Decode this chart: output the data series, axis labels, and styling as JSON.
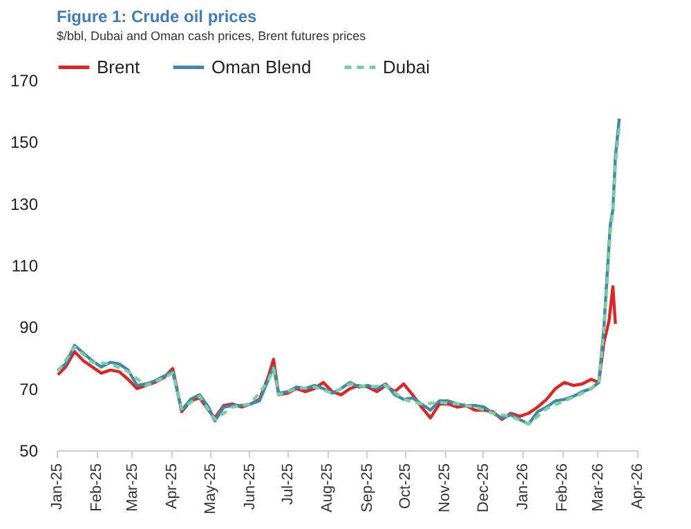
{
  "chart_data": {
    "type": "line",
    "title": "Figure 1: Crude oil prices",
    "subtitle": "$/bbl, Dubai and Oman cash prices, Brent futures prices",
    "legend": "top",
    "grid": false,
    "marker": "none",
    "line_style": "solid",
    "ylim": [
      50,
      170
    ],
    "yticks": [
      50,
      70,
      90,
      110,
      130,
      150,
      170
    ],
    "xlim": [
      "2025-01-01",
      "2026-04-01"
    ],
    "xticks": [
      {
        "value": "2025-01-01",
        "label": "Jan-25"
      },
      {
        "value": "2025-02-01",
        "label": "Feb-25"
      },
      {
        "value": "2025-03-01",
        "label": "Mar-25"
      },
      {
        "value": "2025-04-01",
        "label": "Apr-25"
      },
      {
        "value": "2025-05-01",
        "label": "May-25"
      },
      {
        "value": "2025-06-01",
        "label": "Jun-25"
      },
      {
        "value": "2025-07-01",
        "label": "Jul-25"
      },
      {
        "value": "2025-08-01",
        "label": "Aug-25"
      },
      {
        "value": "2025-09-01",
        "label": "Sep-25"
      },
      {
        "value": "2025-10-01",
        "label": "Oct-25"
      },
      {
        "value": "2025-11-01",
        "label": "Nov-25"
      },
      {
        "value": "2025-12-01",
        "label": "Dec-25"
      },
      {
        "value": "2026-01-01",
        "label": "Jan-26"
      },
      {
        "value": "2026-02-01",
        "label": "Feb-26"
      },
      {
        "value": "2026-03-01",
        "label": "Mar-26"
      },
      {
        "value": "2026-04-01",
        "label": "Apr-26"
      }
    ],
    "series": [
      {
        "name": "Brent",
        "color": "#e02424",
        "x": [
          "2025-01-02",
          "2025-01-08",
          "2025-01-15",
          "2025-01-22",
          "2025-01-29",
          "2025-02-05",
          "2025-02-12",
          "2025-02-19",
          "2025-02-26",
          "2025-03-05",
          "2025-03-12",
          "2025-03-19",
          "2025-03-26",
          "2025-04-02",
          "2025-04-09",
          "2025-04-16",
          "2025-04-23",
          "2025-04-30",
          "2025-05-05",
          "2025-05-12",
          "2025-05-19",
          "2025-05-26",
          "2025-06-02",
          "2025-06-09",
          "2025-06-16",
          "2025-06-20",
          "2025-06-24",
          "2025-07-01",
          "2025-07-08",
          "2025-07-15",
          "2025-07-22",
          "2025-07-29",
          "2025-08-05",
          "2025-08-12",
          "2025-08-19",
          "2025-08-26",
          "2025-09-02",
          "2025-09-09",
          "2025-09-16",
          "2025-09-23",
          "2025-09-30",
          "2025-10-07",
          "2025-10-14",
          "2025-10-21",
          "2025-10-28",
          "2025-11-04",
          "2025-11-11",
          "2025-11-18",
          "2025-11-25",
          "2025-12-02",
          "2025-12-09",
          "2025-12-16",
          "2025-12-23",
          "2025-12-30",
          "2026-01-06",
          "2026-01-13",
          "2026-01-20",
          "2026-01-27",
          "2026-02-03",
          "2026-02-10",
          "2026-02-17",
          "2026-02-24",
          "2026-03-02",
          "2026-03-06",
          "2026-03-10",
          "2026-03-13",
          "2026-03-15"
        ],
        "values": [
          74.5,
          77,
          82,
          79,
          77,
          75,
          76,
          75.5,
          73,
          70,
          71,
          72,
          73.5,
          76.5,
          62.5,
          66,
          67,
          63,
          60.5,
          64.5,
          65,
          64,
          65,
          66.5,
          74,
          79.5,
          68,
          68.5,
          70,
          69,
          70,
          72,
          69,
          68,
          70,
          71,
          70.5,
          69,
          71,
          69,
          71.5,
          68,
          64,
          60.5,
          65,
          65,
          64,
          64.5,
          63,
          63,
          62.5,
          60,
          62,
          61,
          62,
          64,
          66.5,
          70,
          72,
          71,
          71.5,
          73,
          72,
          85,
          92,
          103,
          91
        ]
      },
      {
        "name": "Oman Blend",
        "color": "#3f8aa8",
        "x": [
          "2025-01-02",
          "2025-01-08",
          "2025-01-15",
          "2025-01-22",
          "2025-01-29",
          "2025-02-05",
          "2025-02-12",
          "2025-02-19",
          "2025-02-26",
          "2025-03-05",
          "2025-03-12",
          "2025-03-19",
          "2025-03-26",
          "2025-04-02",
          "2025-04-09",
          "2025-04-16",
          "2025-04-23",
          "2025-04-30",
          "2025-05-05",
          "2025-05-12",
          "2025-05-19",
          "2025-05-26",
          "2025-06-02",
          "2025-06-09",
          "2025-06-16",
          "2025-06-20",
          "2025-06-24",
          "2025-07-01",
          "2025-07-08",
          "2025-07-15",
          "2025-07-22",
          "2025-07-29",
          "2025-08-05",
          "2025-08-12",
          "2025-08-19",
          "2025-08-26",
          "2025-09-02",
          "2025-09-09",
          "2025-09-16",
          "2025-09-23",
          "2025-09-30",
          "2025-10-07",
          "2025-10-14",
          "2025-10-21",
          "2025-10-28",
          "2025-11-04",
          "2025-11-11",
          "2025-11-18",
          "2025-11-25",
          "2025-12-02",
          "2025-12-09",
          "2025-12-16",
          "2025-12-23",
          "2025-12-30",
          "2026-01-06",
          "2026-01-13",
          "2026-01-20",
          "2026-01-27",
          "2026-02-03",
          "2026-02-10",
          "2026-02-17",
          "2026-02-24",
          "2026-03-02",
          "2026-03-06",
          "2026-03-09",
          "2026-03-11",
          "2026-03-13",
          "2026-03-15",
          "2026-03-18"
        ],
        "values": [
          76,
          78,
          84,
          81.5,
          79,
          77,
          78.5,
          78,
          76,
          71,
          71.5,
          72.5,
          74,
          75.5,
          63,
          66.5,
          68,
          64,
          59.5,
          64,
          64.5,
          64.5,
          65,
          66,
          73,
          77,
          68.5,
          69,
          70.5,
          70,
          71,
          70,
          68.5,
          70,
          72,
          70.5,
          71,
          70,
          71.5,
          68,
          66.5,
          67,
          65,
          63,
          66,
          66,
          65,
          64.5,
          64.5,
          64,
          62,
          60.5,
          61.5,
          60,
          58.5,
          62.5,
          64,
          66,
          66.5,
          67.5,
          69,
          70,
          72,
          90,
          110,
          123,
          128,
          145,
          157.5
        ]
      },
      {
        "name": "Dubai",
        "color": "#7ccfa4",
        "line_style": "dashed",
        "x": [
          "2025-01-02",
          "2025-01-15",
          "2025-01-29",
          "2025-02-12",
          "2025-02-26",
          "2025-03-12",
          "2025-03-26",
          "2025-04-02",
          "2025-04-09",
          "2025-04-23",
          "2025-05-05",
          "2025-05-19",
          "2025-06-02",
          "2025-06-16",
          "2025-06-20",
          "2025-06-24",
          "2025-07-08",
          "2025-07-22",
          "2025-08-05",
          "2025-08-19",
          "2025-09-02",
          "2025-09-16",
          "2025-09-30",
          "2025-10-14",
          "2025-10-28",
          "2025-11-11",
          "2025-11-25",
          "2025-12-09",
          "2025-12-23",
          "2026-01-06",
          "2026-01-20",
          "2026-02-03",
          "2026-02-17",
          "2026-03-02",
          "2026-03-06",
          "2026-03-09",
          "2026-03-11",
          "2026-03-13",
          "2026-03-15",
          "2026-03-18"
        ],
        "values": [
          75.5,
          83.5,
          78.5,
          78,
          75.5,
          71,
          73.5,
          75,
          63.5,
          67.5,
          60,
          64,
          65,
          72.5,
          76.5,
          68,
          70,
          70.5,
          68.5,
          71.5,
          70.5,
          71,
          66.5,
          65,
          65.5,
          65,
          64,
          62,
          61,
          58.5,
          63.5,
          66,
          68.5,
          71.5,
          89,
          108,
          121,
          127,
          143,
          155
        ]
      }
    ]
  }
}
